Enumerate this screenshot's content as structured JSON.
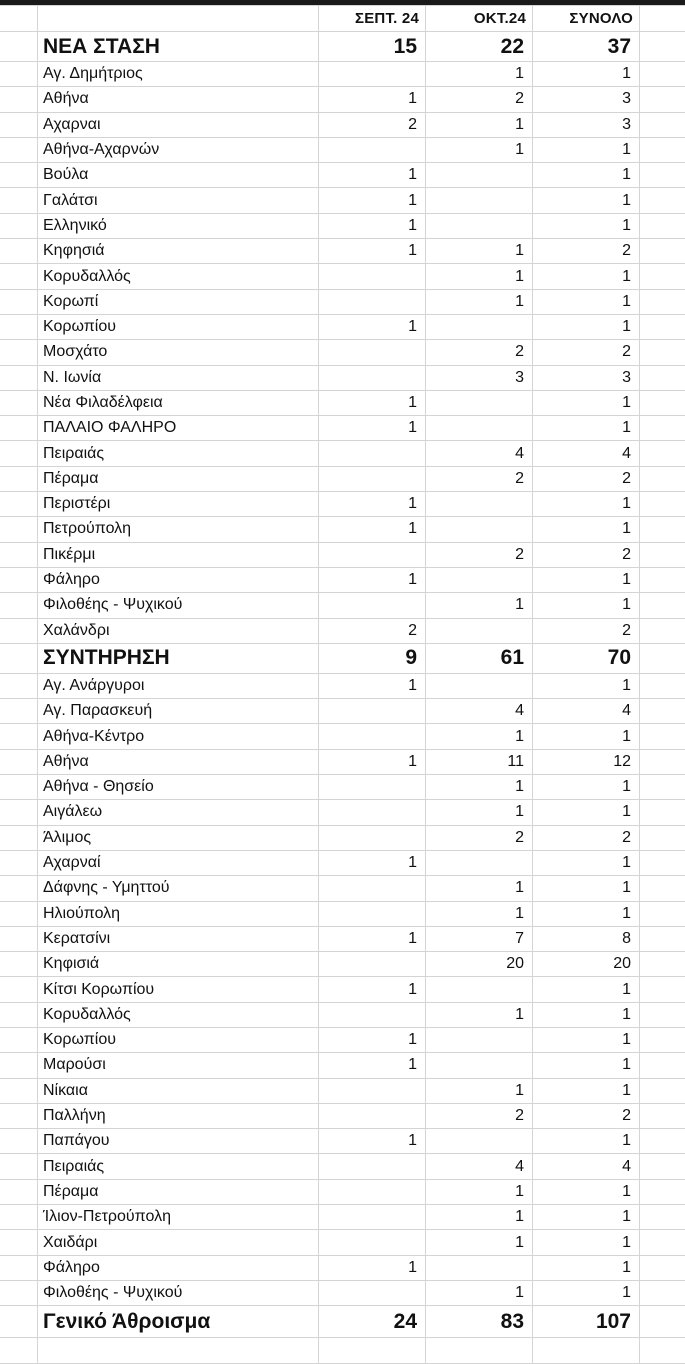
{
  "header": {
    "col1": "ΣΕΠΤ. 24",
    "col2": "ΟΚΤ.24",
    "col3": "ΣΥΝΟΛΟ"
  },
  "sections": [
    {
      "title": "ΝΕΑ ΣΤΑΣΗ",
      "sept": "15",
      "okt": "22",
      "total": "37",
      "rows": [
        {
          "name": "Αγ. Δημήτριος",
          "sept": "",
          "okt": "1",
          "total": "1"
        },
        {
          "name": "Αθήνα",
          "sept": "1",
          "okt": "2",
          "total": "3"
        },
        {
          "name": "Αχαρναι",
          "sept": "2",
          "okt": "1",
          "total": "3"
        },
        {
          "name": "Αθήνα-Αχαρνών",
          "sept": "",
          "okt": "1",
          "total": "1"
        },
        {
          "name": "Βούλα",
          "sept": "1",
          "okt": "",
          "total": "1"
        },
        {
          "name": "Γαλάτσι",
          "sept": "1",
          "okt": "",
          "total": "1"
        },
        {
          "name": "Ελληνικό",
          "sept": "1",
          "okt": "",
          "total": "1"
        },
        {
          "name": "Κηφησιά",
          "sept": "1",
          "okt": "1",
          "total": "2"
        },
        {
          "name": "Κορυδαλλός",
          "sept": "",
          "okt": "1",
          "total": "1"
        },
        {
          "name": "Κορωπί",
          "sept": "",
          "okt": "1",
          "total": "1"
        },
        {
          "name": "Κορωπίου",
          "sept": "1",
          "okt": "",
          "total": "1"
        },
        {
          "name": "Μοσχάτο",
          "sept": "",
          "okt": "2",
          "total": "2"
        },
        {
          "name": "Ν. Ιωνία",
          "sept": "",
          "okt": "3",
          "total": "3"
        },
        {
          "name": "Νέα Φιλαδέλφεια",
          "sept": "1",
          "okt": "",
          "total": "1"
        },
        {
          "name": "ΠΑΛΑΙΟ ΦΑΛΗΡΟ",
          "sept": "1",
          "okt": "",
          "total": "1"
        },
        {
          "name": "Πειραιάς",
          "sept": "",
          "okt": "4",
          "total": "4"
        },
        {
          "name": "Πέραμα",
          "sept": "",
          "okt": "2",
          "total": "2"
        },
        {
          "name": "Περιστέρι",
          "sept": "1",
          "okt": "",
          "total": "1"
        },
        {
          "name": "Πετρούπολη",
          "sept": "1",
          "okt": "",
          "total": "1"
        },
        {
          "name": "Πικέρμι",
          "sept": "",
          "okt": "2",
          "total": "2"
        },
        {
          "name": "Φάληρο",
          "sept": "1",
          "okt": "",
          "total": "1"
        },
        {
          "name": "Φιλοθέης - Ψυχικού",
          "sept": "",
          "okt": "1",
          "total": "1"
        },
        {
          "name": "Χαλάνδρι",
          "sept": "2",
          "okt": "",
          "total": "2"
        }
      ]
    },
    {
      "title": "ΣΥΝΤΗΡΗΣΗ",
      "sept": "9",
      "okt": "61",
      "total": "70",
      "rows": [
        {
          "name": "Αγ. Ανάργυροι",
          "sept": "1",
          "okt": "",
          "total": "1"
        },
        {
          "name": "Αγ. Παρασκευή",
          "sept": "",
          "okt": "4",
          "total": "4"
        },
        {
          "name": "Αθήνα-Κέντρο",
          "sept": "",
          "okt": "1",
          "total": "1"
        },
        {
          "name": "Αθήνα",
          "sept": "1",
          "okt": "11",
          "total": "12"
        },
        {
          "name": "Αθήνα - Θησείο",
          "sept": "",
          "okt": "1",
          "total": "1"
        },
        {
          "name": "Αιγάλεω",
          "sept": "",
          "okt": "1",
          "total": "1"
        },
        {
          "name": "Άλιμος",
          "sept": "",
          "okt": "2",
          "total": "2"
        },
        {
          "name": "Αχαρναί",
          "sept": "1",
          "okt": "",
          "total": "1"
        },
        {
          "name": "Δάφνης - Υμηττού",
          "sept": "",
          "okt": "1",
          "total": "1"
        },
        {
          "name": "Ηλιούπολη",
          "sept": "",
          "okt": "1",
          "total": "1"
        },
        {
          "name": "Κερατσίνι",
          "sept": "1",
          "okt": "7",
          "total": "8"
        },
        {
          "name": "Κηφισιά",
          "sept": "",
          "okt": "20",
          "total": "20"
        },
        {
          "name": "Κίτσι Κορωπίου",
          "sept": "1",
          "okt": "",
          "total": "1"
        },
        {
          "name": "Κορυδαλλός",
          "sept": "",
          "okt": "1",
          "total": "1"
        },
        {
          "name": "Κορωπίου",
          "sept": "1",
          "okt": "",
          "total": "1"
        },
        {
          "name": "Μαρούσι",
          "sept": "1",
          "okt": "",
          "total": "1"
        },
        {
          "name": "Νίκαια",
          "sept": "",
          "okt": "1",
          "total": "1"
        },
        {
          "name": "Παλλήνη",
          "sept": "",
          "okt": "2",
          "total": "2"
        },
        {
          "name": "Παπάγου",
          "sept": "1",
          "okt": "",
          "total": "1"
        },
        {
          "name": "Πειραιάς",
          "sept": "",
          "okt": "4",
          "total": "4"
        },
        {
          "name": "Πέραμα",
          "sept": "",
          "okt": "1",
          "total": "1"
        },
        {
          "name": "Ίλιον-Πετρούπολη",
          "sept": "",
          "okt": "1",
          "total": "1"
        },
        {
          "name": "Χαιδάρι",
          "sept": "",
          "okt": "1",
          "total": "1"
        },
        {
          "name": "Φάληρο",
          "sept": "1",
          "okt": "",
          "total": "1"
        },
        {
          "name": "Φιλοθέης - Ψυχικού",
          "sept": "",
          "okt": "1",
          "total": "1"
        }
      ]
    }
  ],
  "grand_total": {
    "label": "Γενικό Άθροισμα",
    "sept": "24",
    "okt": "83",
    "total": "107"
  }
}
